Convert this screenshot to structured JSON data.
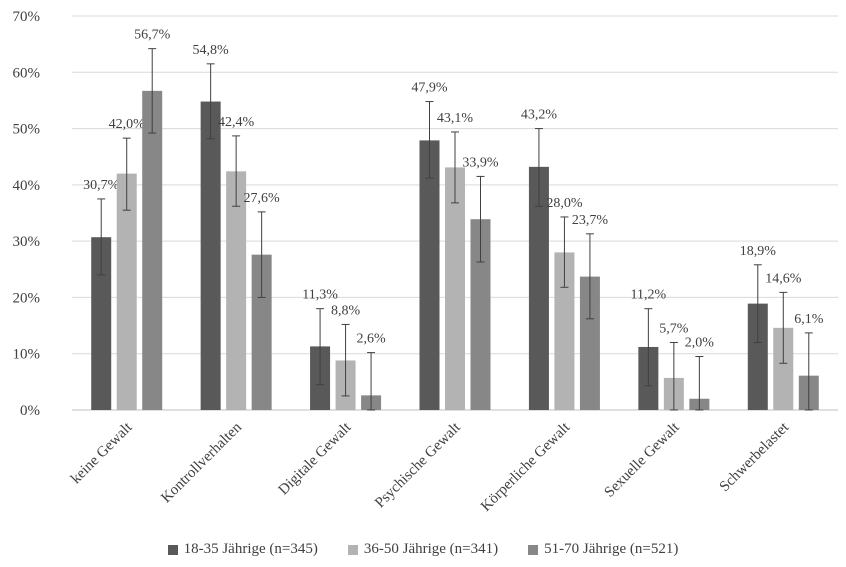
{
  "chart_data": {
    "type": "bar",
    "categories": [
      "keine Gewalt",
      "Kontrollverhalten",
      "Digitale Gewalt",
      "Psychische Gewalt",
      "Körperliche Gewalt",
      "Sexuelle Gewalt",
      "Schwerbelastet"
    ],
    "series": [
      {
        "name": "18-35 Jährige (n=345)",
        "color": "#595959",
        "values": [
          30.7,
          54.8,
          11.3,
          47.9,
          43.2,
          11.2,
          18.9
        ],
        "labels": [
          "30,7%",
          "54,8%",
          "11,3%",
          "47,9%",
          "43,2%",
          "11,2%",
          "18,9%"
        ],
        "err_low": [
          24.0,
          48.2,
          4.5,
          41.2,
          36.2,
          4.3,
          12.0
        ],
        "err_high": [
          37.5,
          61.5,
          18.0,
          54.8,
          50.0,
          18.0,
          25.8
        ]
      },
      {
        "name": "36-50 Jährige (n=341)",
        "color": "#b3b3b3",
        "values": [
          42.0,
          42.4,
          8.8,
          43.1,
          28.0,
          5.7,
          14.6
        ],
        "labels": [
          "42,0%",
          "42,4%",
          "8,8%",
          "43,1%",
          "28,0%",
          "5,7%",
          "14,6%"
        ],
        "err_low": [
          35.5,
          36.2,
          2.5,
          36.8,
          21.8,
          -0.5,
          8.3
        ],
        "err_high": [
          48.3,
          48.7,
          15.2,
          49.4,
          34.3,
          12.0,
          20.9
        ]
      },
      {
        "name": "51-70 Jährige (n=521)",
        "color": "#878787",
        "values": [
          56.7,
          27.6,
          2.6,
          33.9,
          23.7,
          2.0,
          6.1
        ],
        "labels": [
          "56,7%",
          "27,6%",
          "2,6%",
          "33,9%",
          "23,7%",
          "2,0%",
          "6,1%"
        ],
        "err_low": [
          49.2,
          20.0,
          -5.0,
          26.3,
          16.2,
          -5.5,
          -1.5
        ],
        "err_high": [
          64.2,
          35.2,
          10.2,
          41.5,
          31.3,
          9.5,
          13.7
        ]
      }
    ],
    "yticks": [
      "0%",
      "10%",
      "20%",
      "30%",
      "40%",
      "50%",
      "60%",
      "70%"
    ],
    "ylim": [
      0,
      70
    ],
    "legend_position": "bottom",
    "grid": true,
    "error_bars": true
  }
}
